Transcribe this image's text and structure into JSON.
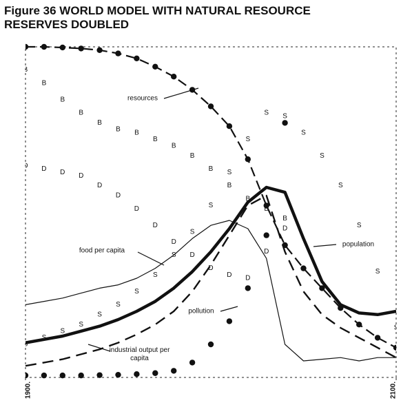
{
  "chart_data": {
    "type": "line",
    "title": "Figure 36 WORLD MODEL WITH NATURAL RESOURCE RESERVES DOUBLED",
    "x": [
      1900,
      1910,
      1920,
      1930,
      1940,
      1950,
      1960,
      1970,
      1980,
      1990,
      2000,
      2010,
      2020,
      2030,
      2040,
      2050,
      2060,
      2070,
      2080,
      2090,
      2100
    ],
    "xlim": [
      1900,
      2100
    ],
    "xticks": [
      {
        "value": 1900,
        "label": "1900."
      },
      {
        "value": 2100,
        "label": "2100."
      }
    ],
    "ylim": [
      0,
      100
    ],
    "series": [
      {
        "name": "resources",
        "style": "dashed-dots",
        "color": "#111111",
        "values": [
          100,
          100,
          99.8,
          99.5,
          99,
          98,
          96.5,
          94,
          91,
          87,
          82,
          76,
          66,
          52,
          40,
          33,
          27,
          21,
          16,
          12,
          9
        ]
      },
      {
        "name": "population",
        "style": "thick",
        "color": "#111111",
        "values": [
          10.5,
          11.5,
          12.5,
          14,
          15.5,
          17.5,
          20,
          23,
          27,
          32,
          38,
          45,
          53,
          57.5,
          56,
          42,
          29,
          22,
          19.5,
          19,
          20
        ]
      },
      {
        "name": "pollution",
        "style": "dots",
        "color": "#111111",
        "values": [
          0.6,
          0.6,
          0.6,
          0.6,
          0.7,
          0.8,
          1,
          1.3,
          2,
          4.5,
          10,
          17,
          27,
          43,
          77,
          130,
          null,
          null,
          null,
          null,
          null
        ]
      },
      {
        "name": "food per capita",
        "style": "thin",
        "color": "#111111",
        "values": [
          22,
          23,
          24,
          25.5,
          27,
          28,
          30,
          33,
          37,
          42,
          46,
          47.5,
          45,
          36,
          10,
          5,
          5.5,
          6,
          5,
          6,
          6
        ]
      },
      {
        "name": "industrial output per capita",
        "style": "dashed",
        "color": "#111111",
        "values": [
          3.5,
          4.5,
          5.5,
          7,
          8.5,
          10.5,
          13,
          16,
          20,
          26,
          34,
          43,
          52,
          55,
          38,
          26,
          19,
          15,
          12,
          9,
          6
        ]
      },
      {
        "marker": "B",
        "style": "letters",
        "color": "#111111",
        "values": [
          93,
          89,
          84,
          80,
          77,
          75,
          74,
          72,
          70,
          67,
          63,
          58,
          54,
          51,
          48,
          null,
          null,
          null,
          null,
          null,
          null
        ]
      },
      {
        "marker": "D",
        "style": "letters",
        "color": "#111111",
        "values": [
          64,
          63,
          62,
          61,
          58,
          55,
          51,
          46,
          41,
          37,
          33,
          31,
          30,
          38,
          45,
          null,
          null,
          null,
          null,
          null,
          null
        ]
      },
      {
        "marker": "S",
        "style": "letters",
        "color": "#111111",
        "values": [
          10,
          12,
          14,
          16,
          19,
          22,
          26,
          31,
          37,
          44,
          52,
          62,
          72,
          80,
          79,
          74,
          67,
          58,
          46,
          32,
          15
        ]
      }
    ]
  }
}
